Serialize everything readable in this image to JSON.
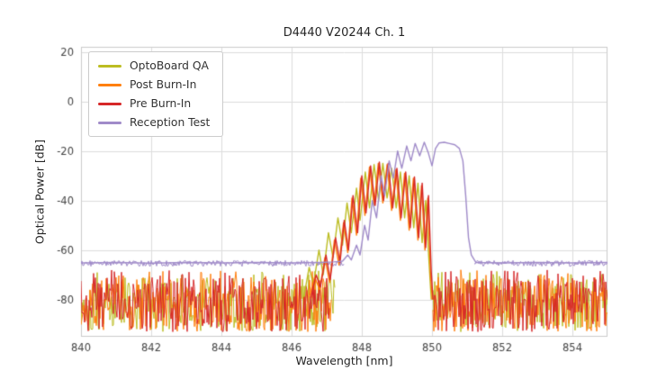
{
  "chart_data": {
    "type": "line",
    "title": "D4440 V20244 Ch. 1",
    "xlabel": "Wavelength [nm]",
    "ylabel": "Optical Power [dB]",
    "xlim": [
      840,
      855
    ],
    "ylim": [
      -95,
      22
    ],
    "xticks": [
      840,
      842,
      844,
      846,
      848,
      850,
      852,
      854
    ],
    "yticks": [
      20,
      0,
      -20,
      -40,
      -60,
      -80
    ],
    "grid": true,
    "grid_color": "#dddddd",
    "frame_color": "#cccccc",
    "background": "#ffffff",
    "text_color": "#262626",
    "tick_color": "#444444",
    "legend_position": "upper-left",
    "series": [
      {
        "name": "OptoBoard QA",
        "color": "#bcbd22",
        "seed": 101,
        "noise": {
          "regions": [
            [
              840,
              847.25
            ],
            [
              850.0,
              855
            ]
          ],
          "top": -71,
          "bottom": -93,
          "spike_chance": 0.05,
          "spike_boost": 3
        },
        "points": [
          [
            846.35,
            -79
          ],
          [
            846.5,
            -67
          ],
          [
            846.62,
            -74
          ],
          [
            846.78,
            -60
          ],
          [
            846.9,
            -70
          ],
          [
            847.05,
            -53
          ],
          [
            847.18,
            -63
          ],
          [
            847.32,
            -47
          ],
          [
            847.45,
            -58
          ],
          [
            847.58,
            -41
          ],
          [
            847.7,
            -53
          ],
          [
            847.85,
            -35
          ],
          [
            847.95,
            -48
          ],
          [
            848.1,
            -28.5
          ],
          [
            848.22,
            -43
          ],
          [
            848.35,
            -25.5
          ],
          [
            848.48,
            -40
          ],
          [
            848.6,
            -25
          ],
          [
            848.72,
            -39
          ],
          [
            848.85,
            -27
          ],
          [
            848.98,
            -43
          ],
          [
            849.1,
            -28.5
          ],
          [
            849.22,
            -47
          ],
          [
            849.35,
            -30
          ],
          [
            849.48,
            -51
          ],
          [
            849.6,
            -33
          ],
          [
            849.72,
            -57
          ],
          [
            849.82,
            -40
          ],
          [
            849.92,
            -66
          ],
          [
            849.98,
            -80
          ]
        ]
      },
      {
        "name": "Post Burn-In",
        "color": "#ff7f0e",
        "seed": 202,
        "noise": {
          "regions": [
            [
              840,
              847.15
            ],
            [
              850.02,
              855
            ]
          ],
          "top": -71,
          "bottom": -93,
          "spike_chance": 0.05,
          "spike_boost": 3
        },
        "points": [
          [
            846.5,
            -79
          ],
          [
            846.66,
            -71
          ],
          [
            846.8,
            -76
          ],
          [
            846.95,
            -63
          ],
          [
            847.08,
            -73
          ],
          [
            847.22,
            -56
          ],
          [
            847.35,
            -66
          ],
          [
            847.48,
            -49
          ],
          [
            847.6,
            -61
          ],
          [
            847.72,
            -39
          ],
          [
            847.85,
            -54
          ],
          [
            847.97,
            -31
          ],
          [
            848.09,
            -46
          ],
          [
            848.22,
            -26.5
          ],
          [
            848.35,
            -42
          ],
          [
            848.47,
            -25
          ],
          [
            848.6,
            -41
          ],
          [
            848.72,
            -25.5
          ],
          [
            848.85,
            -44
          ],
          [
            848.97,
            -27.5
          ],
          [
            849.1,
            -48
          ],
          [
            849.22,
            -29
          ],
          [
            849.35,
            -52
          ],
          [
            849.47,
            -31
          ],
          [
            849.6,
            -56
          ],
          [
            849.7,
            -34
          ],
          [
            849.8,
            -60
          ],
          [
            849.88,
            -39
          ],
          [
            849.96,
            -71
          ],
          [
            850.01,
            -80
          ]
        ]
      },
      {
        "name": "Pre Burn-In",
        "color": "#d62728",
        "seed": 303,
        "noise": {
          "regions": [
            [
              840,
              847.1
            ],
            [
              850.05,
              855
            ]
          ],
          "top": -71,
          "bottom": -93,
          "spike_chance": 0.06,
          "spike_boost": 3
        },
        "points": [
          [
            846.55,
            -79
          ],
          [
            846.7,
            -70
          ],
          [
            846.82,
            -75
          ],
          [
            846.98,
            -62
          ],
          [
            847.1,
            -72
          ],
          [
            847.25,
            -55
          ],
          [
            847.38,
            -65
          ],
          [
            847.5,
            -48
          ],
          [
            847.62,
            -60
          ],
          [
            847.75,
            -38
          ],
          [
            847.88,
            -53
          ],
          [
            848.0,
            -30
          ],
          [
            848.12,
            -45
          ],
          [
            848.25,
            -26
          ],
          [
            848.38,
            -42
          ],
          [
            848.5,
            -24.5
          ],
          [
            848.62,
            -40
          ],
          [
            848.75,
            -25
          ],
          [
            848.88,
            -43
          ],
          [
            849.0,
            -27
          ],
          [
            849.12,
            -47
          ],
          [
            849.25,
            -28.5
          ],
          [
            849.38,
            -51
          ],
          [
            849.5,
            -30.5
          ],
          [
            849.62,
            -55
          ],
          [
            849.72,
            -33
          ],
          [
            849.82,
            -59
          ],
          [
            849.9,
            -38
          ],
          [
            849.98,
            -69
          ],
          [
            850.03,
            -80
          ]
        ]
      },
      {
        "name": "Reception Test",
        "color": "#a08bc9",
        "seed": 404,
        "noise": {
          "regions": [
            [
              840,
              847.5
            ],
            [
              851.2,
              855
            ]
          ],
          "top": -64.2,
          "bottom": -66.6,
          "spike_chance": 0,
          "spike_boost": 0
        },
        "points": [
          [
            840,
            -65.2
          ],
          [
            841,
            -65.0
          ],
          [
            842,
            -65.3
          ],
          [
            843,
            -65.0
          ],
          [
            844,
            -65.2
          ],
          [
            845,
            -65.0
          ],
          [
            846,
            -65.2
          ],
          [
            846.8,
            -65.0
          ],
          [
            847.2,
            -64.8
          ],
          [
            847.45,
            -64.5
          ],
          [
            847.6,
            -62
          ],
          [
            847.7,
            -64
          ],
          [
            847.85,
            -58
          ],
          [
            847.95,
            -62
          ],
          [
            848.08,
            -50
          ],
          [
            848.18,
            -56
          ],
          [
            848.3,
            -40
          ],
          [
            848.42,
            -47
          ],
          [
            848.55,
            -30
          ],
          [
            848.65,
            -38
          ],
          [
            848.78,
            -24
          ],
          [
            848.9,
            -31
          ],
          [
            849.02,
            -20
          ],
          [
            849.14,
            -27
          ],
          [
            849.28,
            -18
          ],
          [
            849.4,
            -24
          ],
          [
            849.52,
            -17
          ],
          [
            849.65,
            -22
          ],
          [
            849.78,
            -16.5
          ],
          [
            849.9,
            -21
          ],
          [
            850.0,
            -26
          ],
          [
            850.1,
            -19
          ],
          [
            850.2,
            -16.8
          ],
          [
            850.35,
            -16.5
          ],
          [
            850.5,
            -17
          ],
          [
            850.65,
            -17.5
          ],
          [
            850.78,
            -19
          ],
          [
            850.88,
            -24
          ],
          [
            850.96,
            -38
          ],
          [
            851.04,
            -55
          ],
          [
            851.12,
            -62
          ],
          [
            851.25,
            -65
          ],
          [
            852,
            -65.2
          ],
          [
            853,
            -65.0
          ],
          [
            854,
            -65.2
          ],
          [
            855,
            -65.0
          ]
        ]
      }
    ]
  }
}
